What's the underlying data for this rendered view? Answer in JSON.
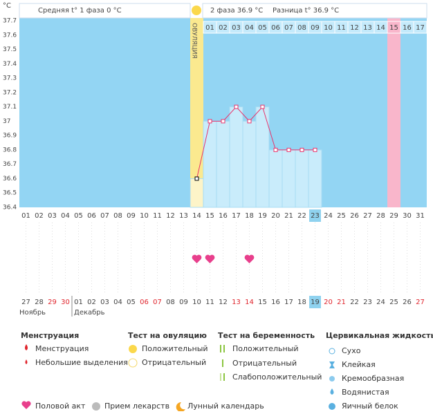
{
  "header": {
    "unit": "°C",
    "phase1": "Средняя t° 1 фаза 0 °C",
    "phase2": "2 фаза 36.9 °C",
    "difference": "Разница t° 36.9 °C"
  },
  "chart_data": {
    "type": "line",
    "ovulation_label": "ОВУЛЯЦИЯ",
    "categories": [
      "01",
      "02",
      "03",
      "04",
      "05",
      "06",
      "07",
      "08",
      "09",
      "10",
      "11",
      "12",
      "13",
      "14",
      "15",
      "16",
      "17",
      "18",
      "19",
      "20",
      "21",
      "22",
      "23",
      "24",
      "25",
      "26",
      "27",
      "28",
      "29",
      "30",
      "31"
    ],
    "cycle_days": [
      null,
      null,
      null,
      null,
      null,
      null,
      null,
      null,
      null,
      null,
      null,
      null,
      null,
      null,
      "01",
      "02",
      "03",
      "04",
      "05",
      "06",
      "07",
      "08",
      "09",
      "10",
      "11",
      "12",
      "13",
      "14",
      "15",
      "16",
      "17"
    ],
    "series": [
      {
        "color": "#e8336b",
        "values": [
          null,
          null,
          null,
          null,
          null,
          null,
          null,
          null,
          null,
          null,
          null,
          null,
          null,
          36.6,
          37,
          37,
          37.1,
          37,
          37.1,
          36.8,
          36.8,
          36.8,
          36.8,
          null,
          null,
          null,
          null,
          null,
          null,
          null,
          null
        ]
      }
    ],
    "column_colors": [
      null,
      null,
      null,
      null,
      null,
      null,
      null,
      null,
      null,
      null,
      null,
      null,
      null,
      "#fbe98f",
      null,
      null,
      null,
      null,
      null,
      null,
      null,
      null,
      null,
      null,
      null,
      null,
      null,
      null,
      "#f9b6cb",
      null,
      null
    ],
    "selected": [
      false,
      false,
      false,
      false,
      false,
      false,
      false,
      false,
      false,
      false,
      false,
      false,
      false,
      false,
      false,
      false,
      false,
      false,
      false,
      false,
      false,
      false,
      true,
      false,
      false,
      false,
      false,
      false,
      false,
      false,
      false
    ],
    "intercourse": [
      false,
      false,
      false,
      false,
      false,
      false,
      false,
      false,
      false,
      false,
      false,
      false,
      false,
      true,
      true,
      false,
      false,
      true,
      false,
      false,
      false,
      false,
      false,
      false,
      false,
      false,
      false,
      false,
      false,
      false,
      false
    ],
    "dates": [
      "27",
      "28",
      "29",
      "30",
      "01",
      "02",
      "03",
      "04",
      "05",
      "06",
      "07",
      "08",
      "09",
      "10",
      "11",
      "12",
      "13",
      "14",
      "15",
      "16",
      "17",
      "18",
      "19",
      "20",
      "21",
      "22",
      "23",
      "24",
      "25",
      "26",
      "27"
    ],
    "weekend": [
      false,
      false,
      true,
      true,
      false,
      false,
      false,
      false,
      false,
      true,
      true,
      false,
      false,
      false,
      false,
      false,
      true,
      true,
      false,
      false,
      false,
      false,
      false,
      true,
      true,
      false,
      false,
      false,
      false,
      false,
      true
    ],
    "months": [
      "Ноябрь",
      "Декабрь"
    ],
    "ylim": [
      36.4,
      37.7
    ],
    "yticks": [
      36.4,
      36.5,
      36.6,
      36.7,
      36.8,
      36.9,
      37,
      37.1,
      37.2,
      37.3,
      37.4,
      37.5,
      37.6,
      37.7
    ],
    "grid": false,
    "background": "#93d5f3"
  },
  "legend": {
    "menstruation": {
      "title": "Менструация",
      "items": [
        "Менструация",
        "Небольшие выделения"
      ]
    },
    "ovulation_test": {
      "title": "Тест на овуляцию",
      "items": [
        "Положительный",
        "Отрицательный"
      ]
    },
    "pregnancy_test": {
      "title": "Тест на беременность",
      "items": [
        "Положительный",
        "Отрицательный",
        "Слабоположительный"
      ]
    },
    "cervical": {
      "title": "Цервикальная жидкость",
      "items": [
        "Сухо",
        "Клейкая",
        "Кремообразная",
        "Водянистая",
        "Яичный белок"
      ]
    },
    "other": [
      "Половой акт",
      "Прием лекарств",
      "Лунный календарь"
    ]
  }
}
